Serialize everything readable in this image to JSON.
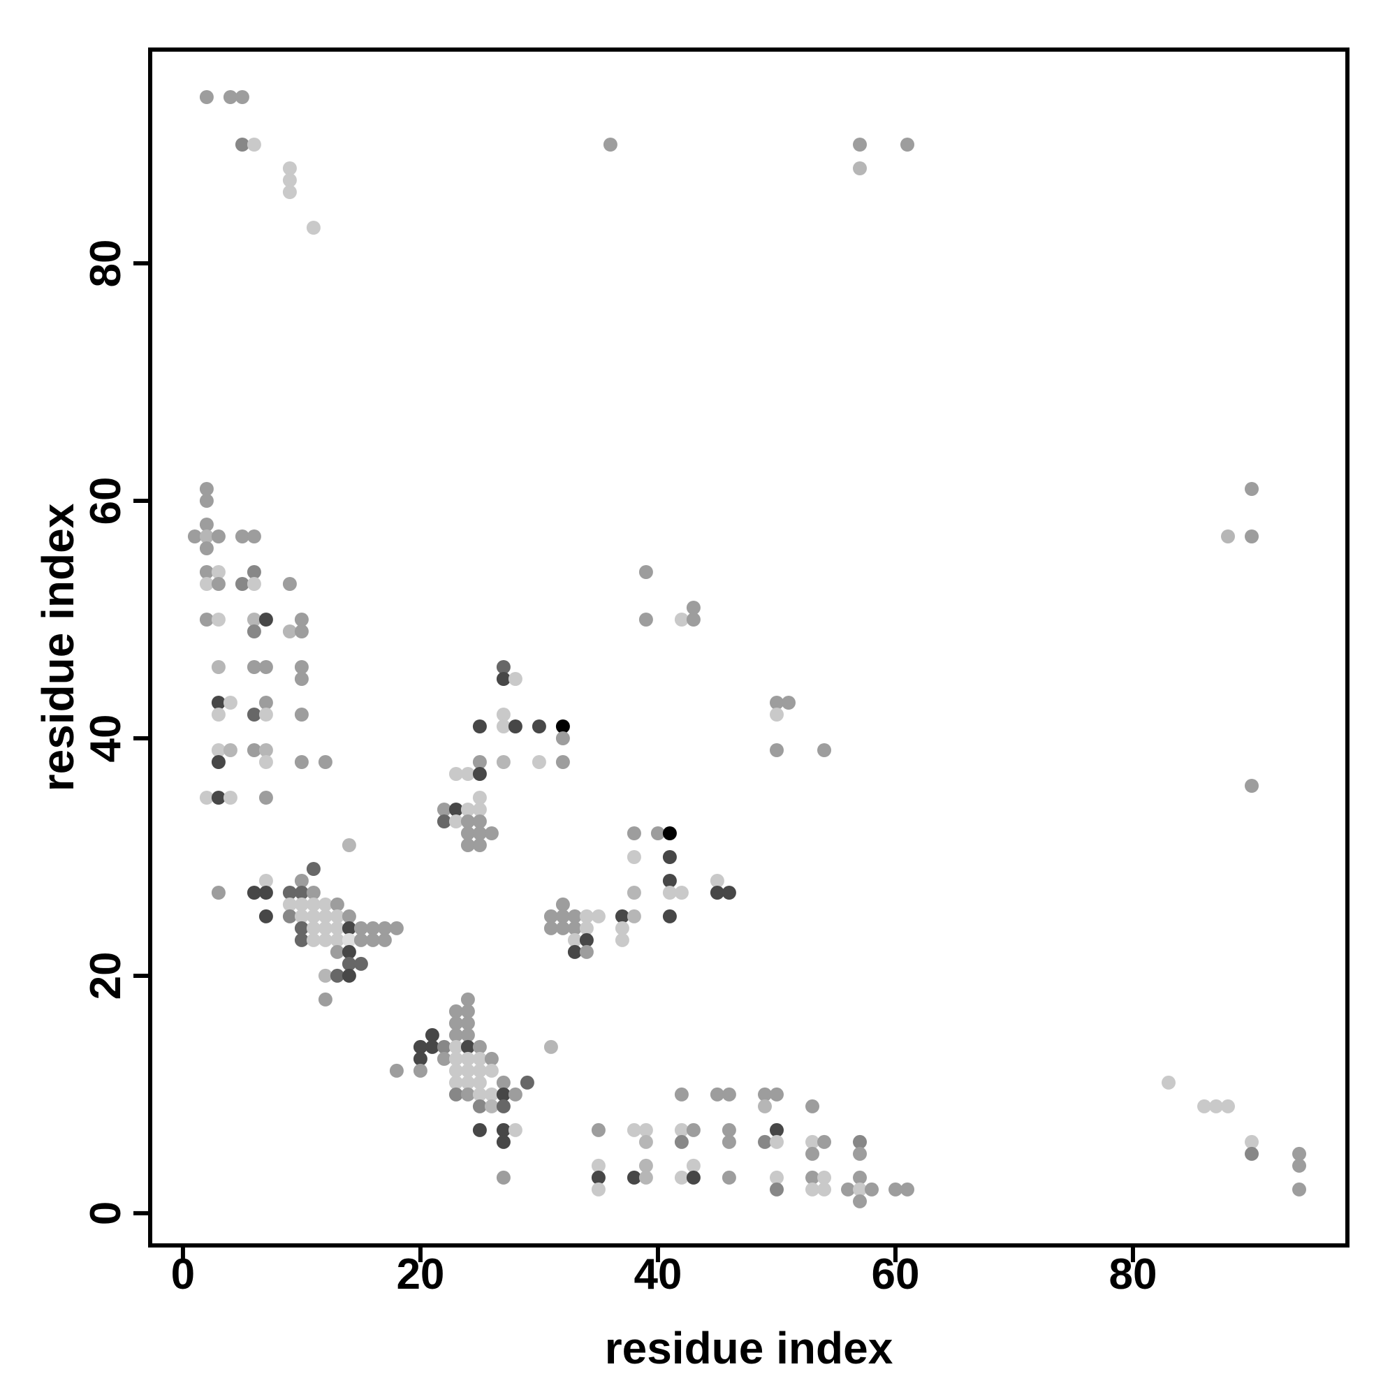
{
  "chart_data": {
    "type": "scatter",
    "title": "",
    "xlabel": "residue index",
    "ylabel": "residue index",
    "xlim": [
      -2.76,
      98.06
    ],
    "ylim": [
      -2.71,
      98.0
    ],
    "x_ticks": [
      0,
      20,
      40,
      60,
      80
    ],
    "y_ticks": [
      0,
      20,
      40,
      60,
      80
    ],
    "grid": false,
    "legend": "none",
    "background_color": "#ffffff",
    "frame_color": "#000000",
    "marker": "circle",
    "shade_palette": {
      "k": "#000000",
      "D": "#474747",
      "d": "#676767",
      "dm": "#878787",
      "m": "#9d9d9d",
      "lm": "#b6b6b6",
      "l": "#c9c9c9",
      "vl": "#dedede"
    },
    "points": [
      [
        2,
        94,
        "m"
      ],
      [
        4,
        94,
        "m"
      ],
      [
        5,
        94,
        "m"
      ],
      [
        5,
        90,
        "dm"
      ],
      [
        6,
        90,
        "l"
      ],
      [
        9,
        88,
        "l"
      ],
      [
        9,
        87,
        "l"
      ],
      [
        9,
        86,
        "l"
      ],
      [
        11,
        83,
        "l"
      ],
      [
        36,
        90,
        "m"
      ],
      [
        57,
        90,
        "m"
      ],
      [
        61,
        90,
        "m"
      ],
      [
        57,
        88,
        "lm"
      ],
      [
        90,
        61,
        "m"
      ],
      [
        88,
        57,
        "lm"
      ],
      [
        90,
        57,
        "m"
      ],
      [
        90,
        36,
        "m"
      ],
      [
        2,
        61,
        "m"
      ],
      [
        2,
        60,
        "m"
      ],
      [
        2,
        58,
        "m"
      ],
      [
        1,
        57,
        "m"
      ],
      [
        2,
        57,
        "lm"
      ],
      [
        3,
        57,
        "m"
      ],
      [
        2,
        56,
        "m"
      ],
      [
        5,
        57,
        "m"
      ],
      [
        6,
        57,
        "m"
      ],
      [
        2,
        54,
        "m"
      ],
      [
        3,
        54,
        "l"
      ],
      [
        2,
        53,
        "l"
      ],
      [
        3,
        53,
        "m"
      ],
      [
        6,
        54,
        "dm"
      ],
      [
        5,
        53,
        "dm"
      ],
      [
        6,
        53,
        "l"
      ],
      [
        9,
        53,
        "m"
      ],
      [
        2,
        50,
        "m"
      ],
      [
        3,
        50,
        "l"
      ],
      [
        6,
        50,
        "lm"
      ],
      [
        7,
        50,
        "D"
      ],
      [
        6,
        49,
        "dm"
      ],
      [
        10,
        50,
        "m"
      ],
      [
        9,
        49,
        "lm"
      ],
      [
        10,
        49,
        "m"
      ],
      [
        3,
        46,
        "lm"
      ],
      [
        6,
        46,
        "m"
      ],
      [
        7,
        46,
        "m"
      ],
      [
        10,
        46,
        "m"
      ],
      [
        10,
        45,
        "m"
      ],
      [
        3,
        43,
        "D"
      ],
      [
        4,
        43,
        "l"
      ],
      [
        7,
        43,
        "m"
      ],
      [
        3,
        42,
        "l"
      ],
      [
        6,
        42,
        "d"
      ],
      [
        7,
        42,
        "l"
      ],
      [
        10,
        42,
        "m"
      ],
      [
        3,
        39,
        "l"
      ],
      [
        4,
        39,
        "lm"
      ],
      [
        6,
        39,
        "m"
      ],
      [
        7,
        39,
        "lm"
      ],
      [
        3,
        38,
        "D"
      ],
      [
        7,
        38,
        "l"
      ],
      [
        10,
        38,
        "m"
      ],
      [
        12,
        38,
        "m"
      ],
      [
        2,
        35,
        "l"
      ],
      [
        3,
        35,
        "D"
      ],
      [
        4,
        35,
        "l"
      ],
      [
        7,
        35,
        "m"
      ],
      [
        14,
        31,
        "lm"
      ],
      [
        11,
        29,
        "d"
      ],
      [
        7,
        28,
        "l"
      ],
      [
        10,
        28,
        "m"
      ],
      [
        3,
        27,
        "m"
      ],
      [
        6,
        27,
        "D"
      ],
      [
        7,
        27,
        "D"
      ],
      [
        9,
        27,
        "d"
      ],
      [
        10,
        27,
        "d"
      ],
      [
        11,
        27,
        "m"
      ],
      [
        9,
        26,
        "l"
      ],
      [
        10,
        26,
        "l"
      ],
      [
        11,
        26,
        "l"
      ],
      [
        12,
        26,
        "l"
      ],
      [
        13,
        26,
        "m"
      ],
      [
        7,
        25,
        "D"
      ],
      [
        9,
        25,
        "dm"
      ],
      [
        10,
        25,
        "l"
      ],
      [
        11,
        25,
        "l"
      ],
      [
        12,
        25,
        "l"
      ],
      [
        13,
        25,
        "l"
      ],
      [
        14,
        25,
        "m"
      ],
      [
        10,
        24,
        "d"
      ],
      [
        11,
        24,
        "l"
      ],
      [
        12,
        24,
        "l"
      ],
      [
        13,
        24,
        "l"
      ],
      [
        14,
        24,
        "D"
      ],
      [
        15,
        24,
        "m"
      ],
      [
        16,
        24,
        "m"
      ],
      [
        17,
        24,
        "m"
      ],
      [
        18,
        24,
        "m"
      ],
      [
        10,
        23,
        "d"
      ],
      [
        11,
        23,
        "l"
      ],
      [
        12,
        23,
        "l"
      ],
      [
        13,
        23,
        "l"
      ],
      [
        14,
        23,
        "vl"
      ],
      [
        15,
        23,
        "m"
      ],
      [
        16,
        23,
        "m"
      ],
      [
        17,
        23,
        "m"
      ],
      [
        13,
        22,
        "m"
      ],
      [
        14,
        22,
        "D"
      ],
      [
        14,
        21,
        "d"
      ],
      [
        15,
        21,
        "d"
      ],
      [
        12,
        20,
        "lm"
      ],
      [
        13,
        20,
        "d"
      ],
      [
        14,
        20,
        "D"
      ],
      [
        12,
        18,
        "m"
      ],
      [
        24,
        18,
        "m"
      ],
      [
        23,
        17,
        "m"
      ],
      [
        24,
        17,
        "m"
      ],
      [
        23,
        16,
        "m"
      ],
      [
        24,
        16,
        "m"
      ],
      [
        21,
        15,
        "D"
      ],
      [
        23,
        15,
        "m"
      ],
      [
        24,
        15,
        "m"
      ],
      [
        20,
        14,
        "D"
      ],
      [
        21,
        14,
        "D"
      ],
      [
        22,
        14,
        "dm"
      ],
      [
        23,
        14,
        "l"
      ],
      [
        24,
        14,
        "D"
      ],
      [
        25,
        14,
        "m"
      ],
      [
        20,
        13,
        "D"
      ],
      [
        22,
        13,
        "m"
      ],
      [
        23,
        13,
        "l"
      ],
      [
        24,
        13,
        "l"
      ],
      [
        25,
        13,
        "l"
      ],
      [
        26,
        13,
        "m"
      ],
      [
        18,
        12,
        "m"
      ],
      [
        20,
        12,
        "m"
      ],
      [
        23,
        12,
        "l"
      ],
      [
        24,
        12,
        "l"
      ],
      [
        25,
        12,
        "l"
      ],
      [
        26,
        12,
        "l"
      ],
      [
        31,
        14,
        "lm"
      ],
      [
        23,
        11,
        "l"
      ],
      [
        24,
        11,
        "l"
      ],
      [
        25,
        11,
        "l"
      ],
      [
        27,
        11,
        "m"
      ],
      [
        29,
        11,
        "d"
      ],
      [
        23,
        10,
        "dm"
      ],
      [
        24,
        10,
        "m"
      ],
      [
        25,
        10,
        "l"
      ],
      [
        26,
        10,
        "l"
      ],
      [
        27,
        10,
        "D"
      ],
      [
        28,
        10,
        "m"
      ],
      [
        25,
        9,
        "dm"
      ],
      [
        26,
        9,
        "lm"
      ],
      [
        27,
        9,
        "d"
      ],
      [
        25,
        7,
        "D"
      ],
      [
        27,
        7,
        "D"
      ],
      [
        28,
        7,
        "l"
      ],
      [
        27,
        6,
        "D"
      ],
      [
        27,
        3,
        "m"
      ],
      [
        27,
        46,
        "d"
      ],
      [
        27,
        45,
        "D"
      ],
      [
        28,
        45,
        "l"
      ],
      [
        27,
        42,
        "l"
      ],
      [
        25,
        41,
        "D"
      ],
      [
        27,
        41,
        "l"
      ],
      [
        28,
        41,
        "D"
      ],
      [
        30,
        41,
        "D"
      ],
      [
        32,
        41,
        "k"
      ],
      [
        32,
        40,
        "m"
      ],
      [
        25,
        38,
        "m"
      ],
      [
        27,
        38,
        "lm"
      ],
      [
        30,
        38,
        "l"
      ],
      [
        32,
        38,
        "m"
      ],
      [
        23,
        37,
        "l"
      ],
      [
        24,
        37,
        "l"
      ],
      [
        25,
        37,
        "D"
      ],
      [
        25,
        35,
        "l"
      ],
      [
        22,
        34,
        "m"
      ],
      [
        23,
        34,
        "D"
      ],
      [
        24,
        34,
        "l"
      ],
      [
        25,
        34,
        "l"
      ],
      [
        22,
        33,
        "d"
      ],
      [
        23,
        33,
        "l"
      ],
      [
        24,
        33,
        "m"
      ],
      [
        25,
        33,
        "m"
      ],
      [
        24,
        32,
        "m"
      ],
      [
        25,
        32,
        "m"
      ],
      [
        26,
        32,
        "m"
      ],
      [
        24,
        31,
        "m"
      ],
      [
        25,
        31,
        "m"
      ],
      [
        38,
        32,
        "m"
      ],
      [
        40,
        32,
        "m"
      ],
      [
        41,
        32,
        "k"
      ],
      [
        38,
        30,
        "l"
      ],
      [
        41,
        30,
        "D"
      ],
      [
        32,
        26,
        "m"
      ],
      [
        31,
        25,
        "m"
      ],
      [
        32,
        25,
        "m"
      ],
      [
        33,
        25,
        "m"
      ],
      [
        34,
        25,
        "l"
      ],
      [
        35,
        25,
        "l"
      ],
      [
        31,
        24,
        "m"
      ],
      [
        32,
        24,
        "m"
      ],
      [
        33,
        24,
        "m"
      ],
      [
        34,
        24,
        "l"
      ],
      [
        33,
        23,
        "l"
      ],
      [
        34,
        23,
        "D"
      ],
      [
        33,
        22,
        "D"
      ],
      [
        34,
        22,
        "m"
      ],
      [
        38,
        27,
        "lm"
      ],
      [
        37,
        25,
        "D"
      ],
      [
        38,
        25,
        "lm"
      ],
      [
        37,
        24,
        "l"
      ],
      [
        37,
        23,
        "l"
      ],
      [
        41,
        28,
        "D"
      ],
      [
        41,
        27,
        "l"
      ],
      [
        42,
        27,
        "l"
      ],
      [
        41,
        25,
        "D"
      ],
      [
        45,
        28,
        "l"
      ],
      [
        45,
        27,
        "D"
      ],
      [
        46,
        27,
        "D"
      ],
      [
        39,
        54,
        "m"
      ],
      [
        39,
        50,
        "m"
      ],
      [
        42,
        50,
        "l"
      ],
      [
        43,
        51,
        "m"
      ],
      [
        43,
        50,
        "m"
      ],
      [
        50,
        43,
        "m"
      ],
      [
        51,
        43,
        "m"
      ],
      [
        50,
        42,
        "l"
      ],
      [
        50,
        39,
        "m"
      ],
      [
        54,
        39,
        "m"
      ],
      [
        35,
        7,
        "m"
      ],
      [
        38,
        7,
        "l"
      ],
      [
        39,
        7,
        "l"
      ],
      [
        39,
        6,
        "lm"
      ],
      [
        35,
        4,
        "l"
      ],
      [
        35,
        3,
        "D"
      ],
      [
        35,
        2,
        "l"
      ],
      [
        38,
        3,
        "D"
      ],
      [
        39,
        3,
        "lm"
      ],
      [
        39,
        4,
        "lm"
      ],
      [
        42,
        10,
        "m"
      ],
      [
        45,
        10,
        "m"
      ],
      [
        46,
        10,
        "m"
      ],
      [
        49,
        10,
        "m"
      ],
      [
        50,
        10,
        "m"
      ],
      [
        49,
        9,
        "lm"
      ],
      [
        53,
        9,
        "m"
      ],
      [
        42,
        7,
        "l"
      ],
      [
        43,
        7,
        "m"
      ],
      [
        42,
        6,
        "dm"
      ],
      [
        46,
        7,
        "m"
      ],
      [
        46,
        6,
        "m"
      ],
      [
        50,
        7,
        "D"
      ],
      [
        49,
        6,
        "dm"
      ],
      [
        50,
        6,
        "l"
      ],
      [
        53,
        6,
        "l"
      ],
      [
        54,
        6,
        "m"
      ],
      [
        53,
        5,
        "m"
      ],
      [
        57,
        6,
        "dm"
      ],
      [
        57,
        5,
        "m"
      ],
      [
        43,
        4,
        "l"
      ],
      [
        42,
        3,
        "l"
      ],
      [
        43,
        3,
        "D"
      ],
      [
        46,
        3,
        "m"
      ],
      [
        50,
        3,
        "l"
      ],
      [
        50,
        2,
        "dm"
      ],
      [
        53,
        3,
        "m"
      ],
      [
        54,
        3,
        "l"
      ],
      [
        53,
        2,
        "l"
      ],
      [
        54,
        2,
        "l"
      ],
      [
        56,
        2,
        "m"
      ],
      [
        57,
        3,
        "m"
      ],
      [
        57,
        2,
        "l"
      ],
      [
        58,
        2,
        "m"
      ],
      [
        57,
        1,
        "m"
      ],
      [
        60,
        2,
        "m"
      ],
      [
        61,
        2,
        "m"
      ],
      [
        83,
        11,
        "l"
      ],
      [
        86,
        9,
        "l"
      ],
      [
        87,
        9,
        "l"
      ],
      [
        88,
        9,
        "l"
      ],
      [
        90,
        6,
        "l"
      ],
      [
        90,
        5,
        "dm"
      ],
      [
        94,
        5,
        "m"
      ],
      [
        94,
        4,
        "m"
      ],
      [
        94,
        2,
        "m"
      ]
    ]
  }
}
